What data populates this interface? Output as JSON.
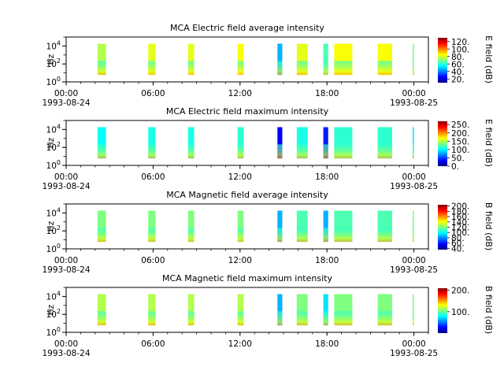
{
  "colors": {
    "jet": [
      "#00007f",
      "#0000ff",
      "#007fff",
      "#00ffff",
      "#7fff7f",
      "#ffff00",
      "#ff7f00",
      "#ff0000",
      "#7f0000"
    ]
  },
  "chart_data": [
    {
      "type": "heatmap",
      "title": "MCA  Electric field average intensity",
      "ylabel": "Hz",
      "yscale": "log",
      "ylim": [
        1,
        100000
      ],
      "yticks": [
        {
          "value": 1,
          "label": "10^0"
        },
        {
          "value": 100,
          "label": "10^2"
        },
        {
          "value": 10000,
          "label": "10^4"
        }
      ],
      "xlim": [
        "1993-08-24 00:00",
        "1993-08-25 01:00"
      ],
      "xticks": [
        {
          "value": "1993-08-24 00:00",
          "time": "00:00",
          "date": "1993-08-24"
        },
        {
          "value": "1993-08-24 06:00",
          "time": "06:00",
          "date": ""
        },
        {
          "value": "1993-08-24 12:00",
          "time": "12:00",
          "date": ""
        },
        {
          "value": "1993-08-24 18:00",
          "time": "18:00",
          "date": ""
        },
        {
          "value": "1993-08-25 00:00",
          "time": "00:00",
          "date": "1993-08-25"
        }
      ],
      "colorbar": {
        "label": "E field (dB)",
        "vmin": 10,
        "vmax": 130,
        "ticks": [
          20,
          40,
          60,
          80,
          100,
          120
        ],
        "tick_labels": [
          "20.",
          "40.",
          "60.",
          "80.",
          "100.",
          "120."
        ]
      },
      "data_blocks": [
        {
          "start": "1993-08-24 02:10",
          "end": "1993-08-24 02:45",
          "level": 0.55
        },
        {
          "start": "1993-08-24 05:40",
          "end": "1993-08-24 06:10",
          "level": 0.6
        },
        {
          "start": "1993-08-24 08:25",
          "end": "1993-08-24 08:50",
          "level": 0.6
        },
        {
          "start": "1993-08-24 11:50",
          "end": "1993-08-24 12:15",
          "level": 0.62
        },
        {
          "start": "1993-08-24 14:35",
          "end": "1993-08-24 14:55",
          "level": 0.3
        },
        {
          "start": "1993-08-24 15:55",
          "end": "1993-08-24 16:40",
          "level": 0.6
        },
        {
          "start": "1993-08-24 17:45",
          "end": "1993-08-24 18:05",
          "level": 0.45
        },
        {
          "start": "1993-08-24 18:30",
          "end": "1993-08-24 19:45",
          "level": 0.62
        },
        {
          "start": "1993-08-24 21:30",
          "end": "1993-08-24 22:30",
          "level": 0.62
        },
        {
          "start": "1993-08-24 23:55",
          "end": "1993-08-25 00:00",
          "level": 0.5
        }
      ]
    },
    {
      "type": "heatmap",
      "title": "MCA  Electric field maximum intensity",
      "ylabel": "Hz",
      "yscale": "log",
      "ylim": [
        1,
        100000
      ],
      "yticks": [
        {
          "value": 1,
          "label": "10^0"
        },
        {
          "value": 100,
          "label": "10^2"
        },
        {
          "value": 10000,
          "label": "10^4"
        }
      ],
      "xlim": [
        "1993-08-24 00:00",
        "1993-08-25 01:00"
      ],
      "xticks": [
        {
          "value": "1993-08-24 00:00",
          "time": "00:00",
          "date": "1993-08-24"
        },
        {
          "value": "1993-08-24 06:00",
          "time": "06:00",
          "date": ""
        },
        {
          "value": "1993-08-24 12:00",
          "time": "12:00",
          "date": ""
        },
        {
          "value": "1993-08-24 18:00",
          "time": "18:00",
          "date": ""
        },
        {
          "value": "1993-08-25 00:00",
          "time": "00:00",
          "date": "1993-08-25"
        }
      ],
      "colorbar": {
        "label": "E field (dB)",
        "vmin": 0,
        "vmax": 270,
        "ticks": [
          0,
          50,
          100,
          150,
          200,
          250
        ],
        "tick_labels": [
          "0.",
          "50.",
          "100.",
          "150.",
          "200.",
          "250."
        ]
      },
      "data_blocks": [
        {
          "start": "1993-08-24 02:10",
          "end": "1993-08-24 02:45",
          "level": 0.38
        },
        {
          "start": "1993-08-24 05:40",
          "end": "1993-08-24 06:10",
          "level": 0.4
        },
        {
          "start": "1993-08-24 08:25",
          "end": "1993-08-24 08:50",
          "level": 0.4
        },
        {
          "start": "1993-08-24 11:50",
          "end": "1993-08-24 12:15",
          "level": 0.42
        },
        {
          "start": "1993-08-24 14:35",
          "end": "1993-08-24 14:55",
          "level": 0.12
        },
        {
          "start": "1993-08-24 15:55",
          "end": "1993-08-24 16:40",
          "level": 0.4
        },
        {
          "start": "1993-08-24 17:45",
          "end": "1993-08-24 18:05",
          "level": 0.15
        },
        {
          "start": "1993-08-24 18:30",
          "end": "1993-08-24 19:45",
          "level": 0.42
        },
        {
          "start": "1993-08-24 21:30",
          "end": "1993-08-24 22:30",
          "level": 0.42
        },
        {
          "start": "1993-08-24 23:55",
          "end": "1993-08-25 00:00",
          "level": 0.35
        }
      ]
    },
    {
      "type": "heatmap",
      "title": "MCA  Magnetic field average intensity",
      "ylabel": "Hz",
      "yscale": "log",
      "ylim": [
        1,
        100000
      ],
      "yticks": [
        {
          "value": 1,
          "label": "10^0"
        },
        {
          "value": 100,
          "label": "10^2"
        },
        {
          "value": 10000,
          "label": "10^4"
        }
      ],
      "xlim": [
        "1993-08-24 00:00",
        "1993-08-25 01:00"
      ],
      "xticks": [
        {
          "value": "1993-08-24 00:00",
          "time": "00:00",
          "date": "1993-08-24"
        },
        {
          "value": "1993-08-24 06:00",
          "time": "06:00",
          "date": ""
        },
        {
          "value": "1993-08-24 12:00",
          "time": "12:00",
          "date": ""
        },
        {
          "value": "1993-08-24 18:00",
          "time": "18:00",
          "date": ""
        },
        {
          "value": "1993-08-25 00:00",
          "time": "00:00",
          "date": "1993-08-25"
        }
      ],
      "colorbar": {
        "label": "B field (dB)",
        "vmin": 35,
        "vmax": 205,
        "ticks": [
          40,
          60,
          80,
          100,
          120,
          140,
          160,
          180,
          200
        ],
        "tick_labels": [
          "40.",
          "60.",
          "80.",
          "100.",
          "120.",
          "140.",
          "160.",
          "180.",
          "200."
        ]
      },
      "data_blocks": [
        {
          "start": "1993-08-24 02:10",
          "end": "1993-08-24 02:45",
          "level": 0.5
        },
        {
          "start": "1993-08-24 05:40",
          "end": "1993-08-24 06:10",
          "level": 0.5
        },
        {
          "start": "1993-08-24 08:25",
          "end": "1993-08-24 08:50",
          "level": 0.5
        },
        {
          "start": "1993-08-24 11:50",
          "end": "1993-08-24 12:15",
          "level": 0.5
        },
        {
          "start": "1993-08-24 14:35",
          "end": "1993-08-24 14:55",
          "level": 0.3
        },
        {
          "start": "1993-08-24 15:55",
          "end": "1993-08-24 16:40",
          "level": 0.45
        },
        {
          "start": "1993-08-24 17:45",
          "end": "1993-08-24 18:05",
          "level": 0.3
        },
        {
          "start": "1993-08-24 18:30",
          "end": "1993-08-24 19:45",
          "level": 0.45
        },
        {
          "start": "1993-08-24 21:30",
          "end": "1993-08-24 22:30",
          "level": 0.45
        },
        {
          "start": "1993-08-24 23:55",
          "end": "1993-08-25 00:00",
          "level": 0.5
        }
      ]
    },
    {
      "type": "heatmap",
      "title": "MCA  Magnetic field maximum intensity",
      "ylabel": "Hz",
      "yscale": "log",
      "ylim": [
        1,
        100000
      ],
      "yticks": [
        {
          "value": 1,
          "label": "10^0"
        },
        {
          "value": 100,
          "label": "10^2"
        },
        {
          "value": 10000,
          "label": "10^4"
        }
      ],
      "xlim": [
        "1993-08-24 00:00",
        "1993-08-25 01:00"
      ],
      "xticks": [
        {
          "value": "1993-08-24 00:00",
          "time": "00:00",
          "date": "1993-08-24"
        },
        {
          "value": "1993-08-24 06:00",
          "time": "06:00",
          "date": ""
        },
        {
          "value": "1993-08-24 12:00",
          "time": "12:00",
          "date": ""
        },
        {
          "value": "1993-08-24 18:00",
          "time": "18:00",
          "date": ""
        },
        {
          "value": "1993-08-25 00:00",
          "time": "00:00",
          "date": "1993-08-25"
        }
      ],
      "colorbar": {
        "label": "B field (dB)",
        "vmin": 0,
        "vmax": 210,
        "ticks": [
          100,
          200
        ],
        "tick_labels": [
          "100.",
          "200."
        ]
      },
      "data_blocks": [
        {
          "start": "1993-08-24 02:10",
          "end": "1993-08-24 02:45",
          "level": 0.55
        },
        {
          "start": "1993-08-24 05:40",
          "end": "1993-08-24 06:10",
          "level": 0.55
        },
        {
          "start": "1993-08-24 08:25",
          "end": "1993-08-24 08:50",
          "level": 0.55
        },
        {
          "start": "1993-08-24 11:50",
          "end": "1993-08-24 12:15",
          "level": 0.55
        },
        {
          "start": "1993-08-24 14:35",
          "end": "1993-08-24 14:55",
          "level": 0.3
        },
        {
          "start": "1993-08-24 15:55",
          "end": "1993-08-24 16:40",
          "level": 0.5
        },
        {
          "start": "1993-08-24 17:45",
          "end": "1993-08-24 18:05",
          "level": 0.35
        },
        {
          "start": "1993-08-24 18:30",
          "end": "1993-08-24 19:45",
          "level": 0.5
        },
        {
          "start": "1993-08-24 21:30",
          "end": "1993-08-24 22:30",
          "level": 0.5
        },
        {
          "start": "1993-08-24 23:55",
          "end": "1993-08-25 00:00",
          "level": 0.5
        }
      ]
    }
  ]
}
